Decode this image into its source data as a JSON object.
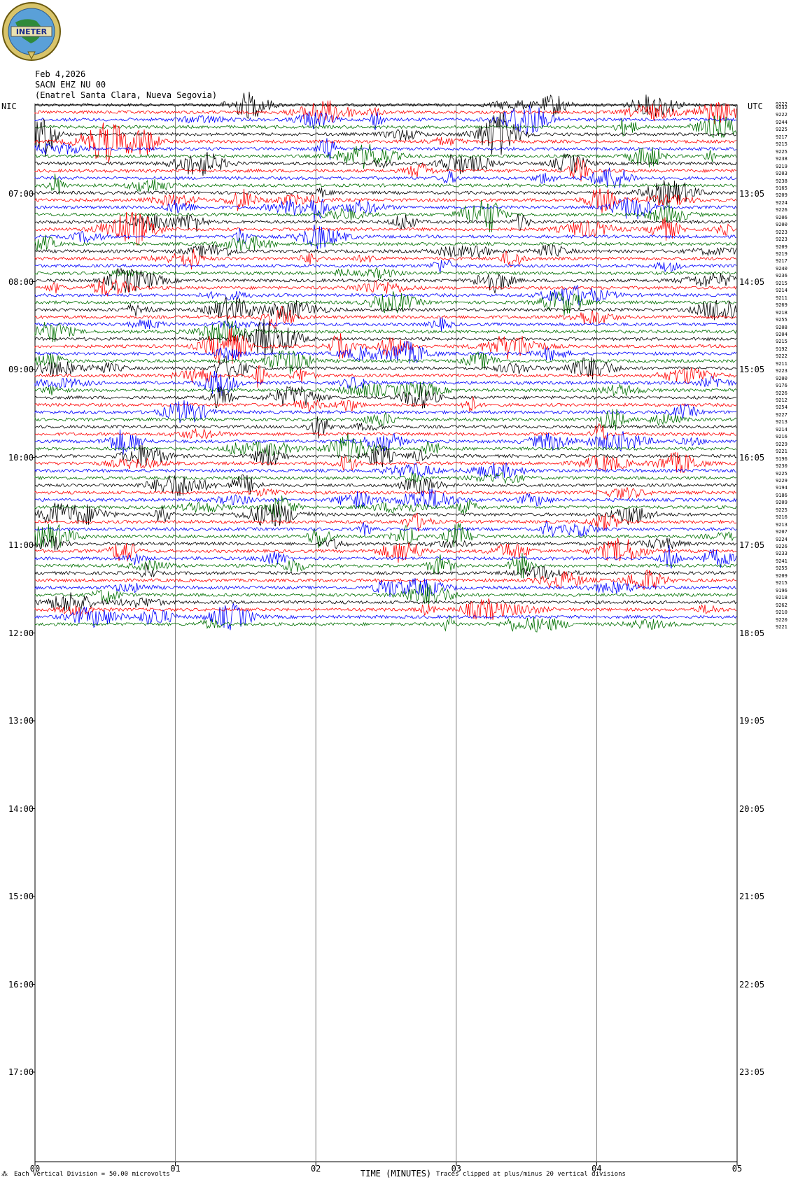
{
  "header": {
    "date": "Feb 4,2026",
    "station": "SACN EHZ NU 00",
    "location": "(Enatrel Santa Clara, Nueva Segovia)"
  },
  "logo": {
    "text": "INETER",
    "icon": "ineter-globe-logo"
  },
  "left_axis_title": "NIC",
  "right_axis_title": "UTC",
  "colors": {
    "cycle": [
      "#000000",
      "#ff0000",
      "#0000ff",
      "#007000"
    ],
    "grid": "#808080"
  },
  "chart_data": {
    "type": "seismogram-helicorder",
    "xlabel": "TIME (MINUTES)",
    "x_ticks": [
      "00",
      "01",
      "02",
      "03",
      "04",
      "05"
    ],
    "xlim": [
      0,
      5
    ],
    "left_time_labels": [
      "07:00",
      "08:00",
      "09:00",
      "10:00",
      "11:00",
      "12:00",
      "13:00",
      "14:00",
      "15:00",
      "16:00",
      "17:00"
    ],
    "right_time_labels": [
      "13:05",
      "14:05",
      "15:05",
      "16:05",
      "17:05",
      "18:05",
      "19:05",
      "20:05",
      "21:05",
      "22:05",
      "23:05"
    ],
    "top_count_label": "9222",
    "trace_counts": [
      "9232",
      "9222",
      "9244",
      "9225",
      "9217",
      "9215",
      "9225",
      "9238",
      "9219",
      "9203",
      "9238",
      "9165",
      "9209",
      "9224",
      "9226",
      "9206",
      "9200",
      "9223",
      "9223",
      "9209",
      "9219",
      "9217",
      "9240",
      "9236",
      "9215",
      "9214",
      "9211",
      "9269",
      "9218",
      "9255",
      "9208",
      "9204",
      "9215",
      "9192",
      "9222",
      "9211",
      "9223",
      "9200",
      "9176",
      "9226",
      "9212",
      "9254",
      "9227",
      "9213",
      "9214",
      "9216",
      "9229",
      "9221",
      "9196",
      "9230",
      "9225",
      "9229",
      "9194",
      "9186",
      "9209",
      "9225",
      "9216",
      "9213",
      "9207",
      "9224",
      "9226",
      "9233",
      "9241",
      "9255",
      "9209",
      "9215",
      "9196",
      "9218",
      "9262",
      "9210",
      "9220",
      "9221"
    ],
    "footer_left": "Each Vertical Division =",
    "footer_units": "50.00 microvolts",
    "footer_clip": "Traces clipped at plus/minus 20 vertical divisions"
  }
}
